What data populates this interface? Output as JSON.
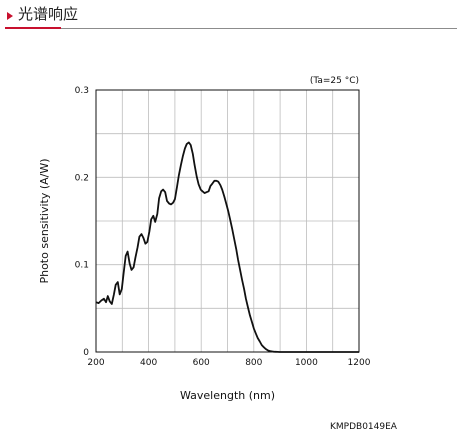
{
  "header": {
    "title": "光谱响应"
  },
  "chart_data": {
    "type": "line",
    "title": "",
    "annotation": "(Ta=25 °C)",
    "xlabel": "Wavelength (nm)",
    "ylabel": "Photo sensitivity (A/W)",
    "xlim": [
      200,
      1200
    ],
    "ylim": [
      0,
      0.3
    ],
    "x_ticks": [
      "200",
      "400",
      "600",
      "800",
      "1000",
      "1200"
    ],
    "y_ticks": [
      "0",
      "0.1",
      "0.2",
      "0.3"
    ],
    "grid": true,
    "series": [
      {
        "x": [
          200,
          210,
          220,
          230,
          238,
          245,
          252,
          260,
          268,
          275,
          283,
          290,
          298,
          305,
          313,
          320,
          328,
          335,
          343,
          350,
          358,
          365,
          373,
          380,
          388,
          395,
          403,
          410,
          418,
          425,
          433,
          440,
          448,
          455,
          463,
          470,
          478,
          485,
          493,
          500,
          508,
          515,
          523,
          530,
          538,
          545,
          553,
          560,
          568,
          575,
          583,
          590,
          598,
          605,
          613,
          620,
          628,
          635,
          643,
          650,
          658,
          665,
          673,
          680,
          688,
          695,
          703,
          710,
          718,
          725,
          733,
          740,
          748,
          755,
          763,
          770,
          778,
          785,
          793,
          800,
          808,
          815,
          823,
          830,
          838,
          845,
          853,
          860,
          868,
          875,
          883,
          890,
          898,
          905,
          913,
          920,
          928,
          935,
          943,
          950,
          958,
          965,
          973,
          980,
          988,
          995,
          1003,
          1010,
          1018,
          1025,
          1033,
          1040,
          1048,
          1055,
          1063,
          1070,
          1078,
          1085,
          1093,
          1100,
          1108,
          1115,
          1123,
          1130,
          1138,
          1145,
          1153,
          1160,
          1168,
          1175,
          1183,
          1190,
          1200
        ],
        "values": [
          0.057,
          0.056,
          0.059,
          0.061,
          0.057,
          0.064,
          0.058,
          0.055,
          0.066,
          0.077,
          0.08,
          0.066,
          0.072,
          0.09,
          0.11,
          0.115,
          0.101,
          0.094,
          0.097,
          0.108,
          0.12,
          0.132,
          0.135,
          0.131,
          0.124,
          0.126,
          0.138,
          0.152,
          0.156,
          0.149,
          0.158,
          0.176,
          0.184,
          0.186,
          0.183,
          0.173,
          0.17,
          0.169,
          0.171,
          0.175,
          0.189,
          0.202,
          0.214,
          0.224,
          0.233,
          0.238,
          0.24,
          0.237,
          0.227,
          0.214,
          0.201,
          0.192,
          0.186,
          0.184,
          0.182,
          0.183,
          0.184,
          0.19,
          0.193,
          0.196,
          0.196,
          0.195,
          0.191,
          0.186,
          0.178,
          0.17,
          0.161,
          0.152,
          0.141,
          0.13,
          0.118,
          0.106,
          0.094,
          0.083,
          0.072,
          0.061,
          0.051,
          0.042,
          0.034,
          0.027,
          0.021,
          0.016,
          0.012,
          0.008,
          0.0055,
          0.0035,
          0.002,
          0.0012,
          0.0007,
          0.0004,
          0.0002,
          0.0001,
          0.0,
          0.0,
          0.0,
          0.0,
          0.0,
          0.0,
          0.0,
          0.0,
          0.0,
          0.0,
          0.0,
          0.0,
          0.0,
          0.0,
          0.0,
          0.0,
          0.0,
          0.0,
          0.0,
          0.0,
          0.0,
          0.0,
          0.0,
          0.0,
          0.0,
          0.0,
          0.0,
          0.0,
          0.0,
          0.0,
          0.0,
          0.0,
          0.0,
          0.0,
          0.0,
          0.0,
          0.0,
          0.0,
          0.0,
          0.0,
          0.0
        ]
      }
    ]
  },
  "footer": {
    "code": "KMPDB0149EA"
  }
}
